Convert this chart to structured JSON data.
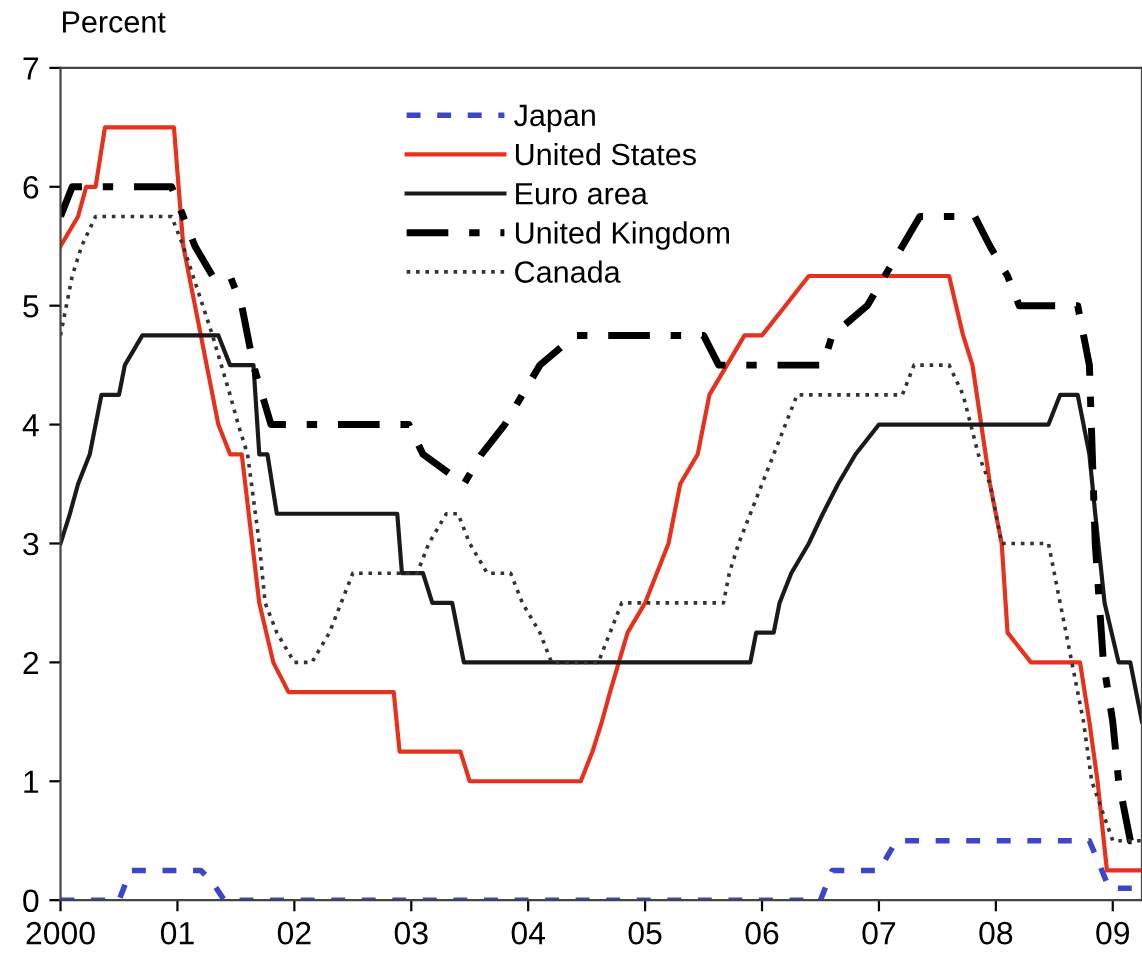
{
  "chart_data": {
    "type": "line",
    "ylabel": "Percent",
    "xlim": [
      2000,
      2009.25
    ],
    "ylim": [
      0,
      7
    ],
    "xticks": [
      {
        "value": 2000,
        "label": "2000"
      },
      {
        "value": 2001,
        "label": "01"
      },
      {
        "value": 2002,
        "label": "02"
      },
      {
        "value": 2003,
        "label": "03"
      },
      {
        "value": 2004,
        "label": "04"
      },
      {
        "value": 2005,
        "label": "05"
      },
      {
        "value": 2006,
        "label": "06"
      },
      {
        "value": 2007,
        "label": "07"
      },
      {
        "value": 2008,
        "label": "08"
      },
      {
        "value": 2009,
        "label": "09"
      }
    ],
    "yticks": [
      0,
      1,
      2,
      3,
      4,
      5,
      6,
      7
    ],
    "grid": false,
    "legend": "top",
    "marker": "none",
    "series": [
      {
        "name": "Japan",
        "color": "#3c46c8",
        "line_style": "dashed",
        "x": [
          2000,
          2000.5,
          2000.6,
          2001.2,
          2001.3,
          2001.4,
          2006.5,
          2006.6,
          2007.0,
          2007.15,
          2008.8,
          2008.97,
          2009.25
        ],
        "values": [
          0,
          0,
          0.25,
          0.25,
          0.15,
          0,
          0,
          0.25,
          0.25,
          0.5,
          0.5,
          0.1,
          0.1
        ]
      },
      {
        "name": "United States",
        "color": "#e8311c",
        "line_style": "solid",
        "x": [
          2000.0,
          2000.15,
          2000.22,
          2000.3,
          2000.38,
          2000.97,
          2001.05,
          2001.15,
          2001.35,
          2001.45,
          2001.55,
          2001.7,
          2001.82,
          2001.95,
          2002.85,
          2002.9,
          2003.42,
          2003.5,
          2004.45,
          2004.55,
          2004.63,
          2004.7,
          2004.85,
          2005.0,
          2005.1,
          2005.2,
          2005.3,
          2005.45,
          2005.55,
          2005.7,
          2005.85,
          2006.0,
          2006.2,
          2006.4,
          2007.6,
          2007.72,
          2007.8,
          2007.95,
          2008.05,
          2008.1,
          2008.3,
          2008.72,
          2008.8,
          2008.87,
          2008.95,
          2009.25
        ],
        "values": [
          5.5,
          5.75,
          6.0,
          6.0,
          6.5,
          6.5,
          5.5,
          5.0,
          4.0,
          3.75,
          3.75,
          2.5,
          2.0,
          1.75,
          1.75,
          1.25,
          1.25,
          1.0,
          1.0,
          1.25,
          1.5,
          1.75,
          2.25,
          2.5,
          2.75,
          3.0,
          3.5,
          3.75,
          4.25,
          4.5,
          4.75,
          4.75,
          5.0,
          5.25,
          5.25,
          4.75,
          4.5,
          3.5,
          3.0,
          2.25,
          2.0,
          2.0,
          1.5,
          1.0,
          0.25,
          0.25
        ]
      },
      {
        "name": "Euro area",
        "color": "#1a1a1a",
        "line_style": "solid",
        "x": [
          2000,
          2000.08,
          2000.15,
          2000.25,
          2000.35,
          2000.5,
          2000.55,
          2000.7,
          2001.35,
          2001.45,
          2001.65,
          2001.7,
          2001.77,
          2001.85,
          2002.88,
          2002.92,
          2003.1,
          2003.18,
          2003.35,
          2003.45,
          2005.9,
          2005.95,
          2006.1,
          2006.15,
          2006.25,
          2006.4,
          2006.52,
          2006.65,
          2006.8,
          2007.0,
          2008.45,
          2008.55,
          2008.7,
          2008.8,
          2008.85,
          2008.93,
          2009.05,
          2009.15,
          2009.25
        ],
        "values": [
          3.0,
          3.25,
          3.5,
          3.75,
          4.25,
          4.25,
          4.5,
          4.75,
          4.75,
          4.5,
          4.5,
          3.75,
          3.75,
          3.25,
          3.25,
          2.75,
          2.75,
          2.5,
          2.5,
          2.0,
          2.0,
          2.25,
          2.25,
          2.5,
          2.75,
          3.0,
          3.25,
          3.5,
          3.75,
          4.0,
          4.0,
          4.25,
          4.25,
          3.75,
          3.25,
          2.5,
          2.0,
          2.0,
          1.5
        ]
      },
      {
        "name": "United Kingdom",
        "color": "#000000",
        "line_style": "dashdot",
        "x": [
          2000,
          2000.1,
          2000.95,
          2001.05,
          2001.15,
          2001.3,
          2001.45,
          2001.55,
          2001.65,
          2001.8,
          2002.98,
          2003.1,
          2003.45,
          2003.6,
          2003.8,
          2004.1,
          2004.4,
          2005.5,
          2005.63,
          2006.52,
          2006.6,
          2006.9,
          2007.05,
          2007.2,
          2007.35,
          2007.56,
          2007.82,
          2007.95,
          2008.1,
          2008.2,
          2008.7,
          2008.8,
          2008.85,
          2008.92,
          2009.0,
          2009.05,
          2009.15,
          2009.25
        ],
        "values": [
          5.75,
          6.0,
          6.0,
          5.75,
          5.5,
          5.25,
          5.25,
          5.0,
          4.5,
          4.0,
          4.0,
          3.75,
          3.5,
          3.75,
          4.0,
          4.5,
          4.75,
          4.75,
          4.5,
          4.5,
          4.75,
          5.0,
          5.25,
          5.5,
          5.75,
          5.75,
          5.75,
          5.5,
          5.25,
          5.0,
          5.0,
          4.5,
          3.0,
          2.0,
          1.5,
          1.0,
          0.5,
          0.5
        ]
      },
      {
        "name": "Canada",
        "color": "#333333",
        "line_style": "dotted",
        "x": [
          2000,
          2000.05,
          2000.1,
          2000.18,
          2000.3,
          2000.95,
          2001.05,
          2001.3,
          2001.45,
          2001.52,
          2001.6,
          2001.7,
          2001.75,
          2001.85,
          2002.0,
          2002.15,
          2002.3,
          2002.4,
          2002.5,
          2003.05,
          2003.15,
          2003.3,
          2003.4,
          2003.5,
          2003.65,
          2003.85,
          2003.95,
          2004.1,
          2004.2,
          2004.6,
          2004.7,
          2004.8,
          2005.67,
          2005.72,
          2005.8,
          2005.9,
          2006.0,
          2006.2,
          2006.3,
          2007.2,
          2007.3,
          2007.6,
          2007.72,
          2007.85,
          2007.95,
          2008.05,
          2008.45,
          2008.6,
          2008.75,
          2008.82,
          2009.0,
          2009.25
        ],
        "values": [
          4.75,
          5.0,
          5.25,
          5.5,
          5.75,
          5.75,
          5.5,
          4.75,
          4.25,
          4.0,
          3.75,
          3.0,
          2.5,
          2.25,
          2.0,
          2.0,
          2.25,
          2.5,
          2.75,
          2.75,
          3.0,
          3.25,
          3.25,
          3.0,
          2.75,
          2.75,
          2.5,
          2.25,
          2.0,
          2.0,
          2.25,
          2.5,
          2.5,
          2.75,
          3.0,
          3.25,
          3.5,
          4.0,
          4.25,
          4.25,
          4.5,
          4.5,
          4.25,
          3.75,
          3.5,
          3.0,
          3.0,
          2.25,
          1.5,
          1.0,
          0.5,
          0.5
        ]
      }
    ]
  }
}
